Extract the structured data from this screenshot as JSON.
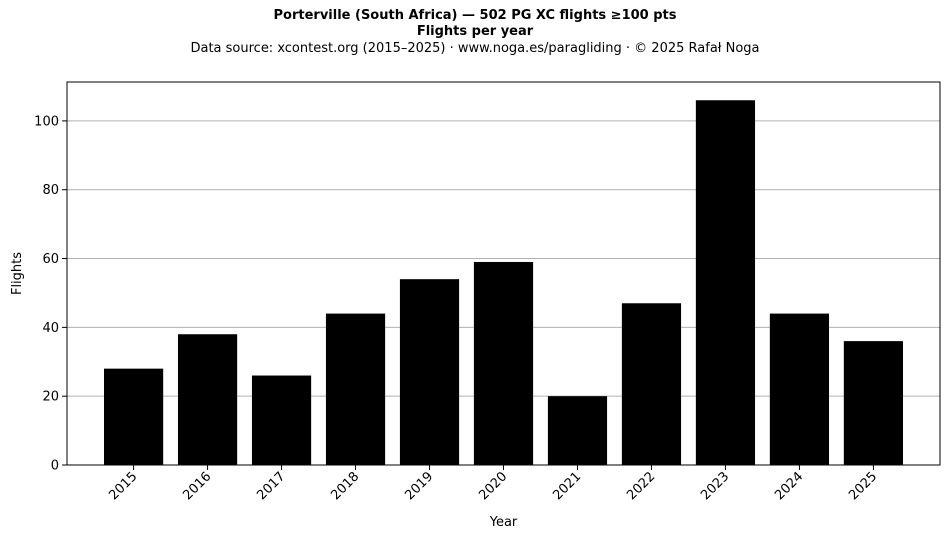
{
  "chart_data": {
    "type": "bar",
    "title": "Porterville (South Africa)  —  502 PG XC flights ≥100 pts",
    "subtitle": "Flights per year",
    "source": "Data source: xcontest.org (2015–2025)  ·  www.noga.es/paragliding  ·  © 2025 Rafał Noga",
    "xlabel": "Year",
    "ylabel": "Flights",
    "categories": [
      "2015",
      "2016",
      "2017",
      "2018",
      "2019",
      "2020",
      "2021",
      "2022",
      "2023",
      "2024",
      "2025"
    ],
    "values": [
      28,
      38,
      26,
      44,
      54,
      59,
      20,
      47,
      106,
      44,
      36
    ],
    "ylim": [
      0,
      111.3
    ],
    "yticks": [
      0,
      20,
      40,
      60,
      80,
      100
    ],
    "grid": "y",
    "bar_color": "#000000",
    "grid_color": "#b0b0b0"
  }
}
